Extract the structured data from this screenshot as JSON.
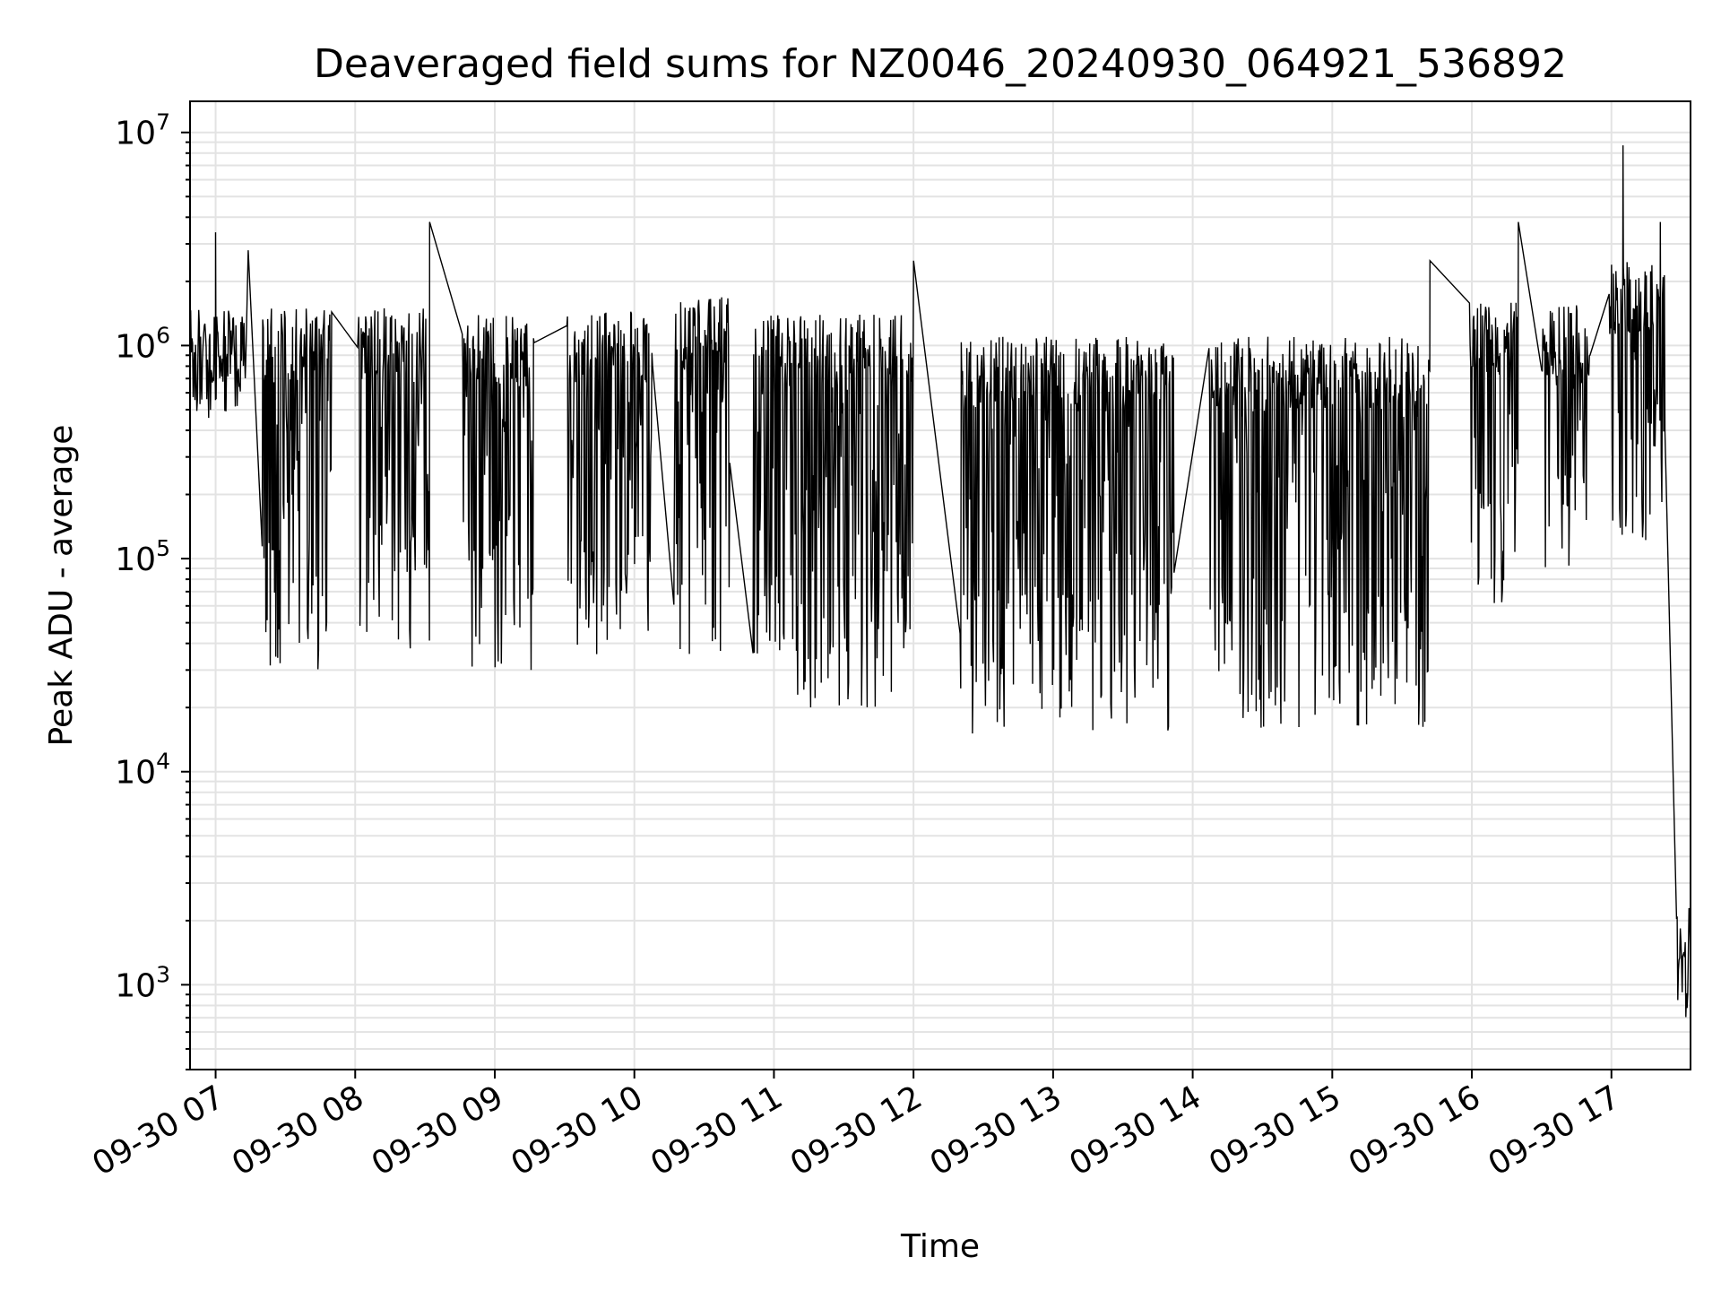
{
  "chart_data": {
    "type": "line",
    "title": "Deaveraged field sums for NZ0046_20240930_064921_536892",
    "xlabel": "Time",
    "ylabel": "Peak ADU - average",
    "y_scale": "log",
    "ylim": [
      400,
      14000000
    ],
    "xlim": [
      "2024-09-30 06:49",
      "2024-09-30 17:34"
    ],
    "grid": true,
    "line_color": "#000000",
    "x_ticks": [
      {
        "value": "2024-09-30 07:00",
        "label": "09-30 07"
      },
      {
        "value": "2024-09-30 08:00",
        "label": "09-30 08"
      },
      {
        "value": "2024-09-30 09:00",
        "label": "09-30 09"
      },
      {
        "value": "2024-09-30 10:00",
        "label": "09-30 10"
      },
      {
        "value": "2024-09-30 11:00",
        "label": "09-30 11"
      },
      {
        "value": "2024-09-30 12:00",
        "label": "09-30 12"
      },
      {
        "value": "2024-09-30 13:00",
        "label": "09-30 13"
      },
      {
        "value": "2024-09-30 14:00",
        "label": "09-30 14"
      },
      {
        "value": "2024-09-30 15:00",
        "label": "09-30 15"
      },
      {
        "value": "2024-09-30 16:00",
        "label": "09-30 16"
      },
      {
        "value": "2024-09-30 17:00",
        "label": "09-30 17"
      }
    ],
    "y_ticks": [
      {
        "value": 1000,
        "base": "10",
        "exp": "3"
      },
      {
        "value": 10000,
        "base": "10",
        "exp": "4"
      },
      {
        "value": 100000,
        "base": "10",
        "exp": "5"
      },
      {
        "value": 1000000,
        "base": "10",
        "exp": "6"
      },
      {
        "value": 10000000,
        "base": "10",
        "exp": "7"
      }
    ],
    "series": [
      {
        "note_segments": "observing blocks: [start, end, upper envelope, lower envelope] in data units",
        "blocks": [
          {
            "start": "2024-09-30 06:49",
            "end": "2024-09-30 07:13",
            "high": 1500000,
            "low": 450000
          },
          {
            "start": "2024-09-30 07:20",
            "end": "2024-09-30 07:50",
            "high": 1500000,
            "low": 30000
          },
          {
            "start": "2024-09-30 08:01",
            "end": "2024-09-30 08:32",
            "high": 1500000,
            "low": 35000
          },
          {
            "start": "2024-09-30 08:46",
            "end": "2024-09-30 09:17",
            "high": 1400000,
            "low": 30000
          },
          {
            "start": "2024-09-30 09:31",
            "end": "2024-09-30 10:08",
            "high": 1450000,
            "low": 35000
          },
          {
            "start": "2024-09-30 10:17",
            "end": "2024-09-30 10:41",
            "high": 1700000,
            "low": 35000
          },
          {
            "start": "2024-09-30 10:51",
            "end": "2024-09-30 12:00",
            "high": 1400000,
            "low": 20000
          },
          {
            "start": "2024-09-30 12:20",
            "end": "2024-09-30 13:52",
            "high": 1100000,
            "low": 15000
          },
          {
            "start": "2024-09-30 14:07",
            "end": "2024-09-30 15:42",
            "high": 1100000,
            "low": 15000
          },
          {
            "start": "2024-09-30 15:59",
            "end": "2024-09-30 16:20",
            "high": 1600000,
            "low": 60000
          },
          {
            "start": "2024-09-30 16:30",
            "end": "2024-09-30 16:51",
            "high": 1600000,
            "low": 90000
          },
          {
            "start": "2024-09-30 16:59",
            "end": "2024-09-30 17:23",
            "high": 2500000,
            "low": 120000
          },
          {
            "start": "2024-09-30 17:28",
            "end": "2024-09-30 17:34",
            "high": 2500,
            "low": 650
          }
        ],
        "spikes": [
          {
            "t": "2024-09-30 07:00",
            "v": 3400000
          },
          {
            "t": "2024-09-30 07:14",
            "v": 2800000
          },
          {
            "t": "2024-09-30 08:32",
            "v": 3800000
          },
          {
            "t": "2024-09-30 12:00",
            "v": 2500000
          },
          {
            "t": "2024-09-30 15:42",
            "v": 2500000
          },
          {
            "t": "2024-09-30 16:20",
            "v": 3800000
          },
          {
            "t": "2024-09-30 17:05",
            "v": 8700000
          },
          {
            "t": "2024-09-30 17:21",
            "v": 3800000
          }
        ]
      }
    ]
  }
}
